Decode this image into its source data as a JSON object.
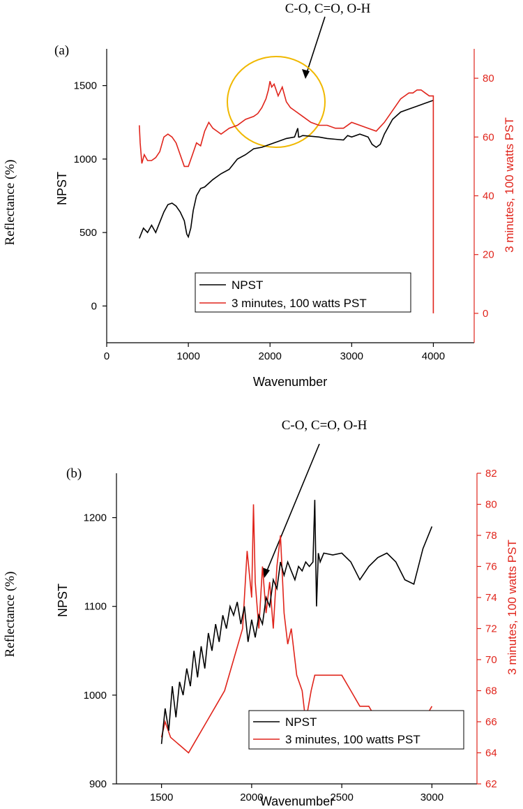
{
  "colors": {
    "npst": "#000000",
    "pst": "#e0241b",
    "circle": "#f0b800"
  },
  "side_label": "Reflectance (%)",
  "chart_data": [
    {
      "panel_label": "(a)",
      "type": "line",
      "annotation": "C-O, C=O, O-H",
      "xlabel": "Wavenumber",
      "ylabel": "NPST",
      "y2label": "3 minutes, 100 watts PST",
      "xlim": [
        0,
        4500
      ],
      "ylim": [
        -250,
        1750
      ],
      "y2lim": [
        -10,
        90
      ],
      "xticks": [
        0,
        1000,
        2000,
        3000,
        4000
      ],
      "xtick_labels": [
        "0",
        "1000",
        "2000",
        "3000",
        "4000"
      ],
      "yticks": [
        0,
        500,
        1000,
        1500
      ],
      "ytick_labels": [
        "0",
        "500",
        "1000",
        "1500"
      ],
      "y2ticks": [
        0,
        20,
        40,
        60,
        80
      ],
      "y2tick_labels": [
        "0",
        "20",
        "40",
        "60",
        "80"
      ],
      "legend": [
        "NPST",
        "3 minutes, 100 watts PST"
      ],
      "series": [
        {
          "name": "NPST",
          "axis": "left",
          "x": [
            400,
            450,
            500,
            550,
            600,
            650,
            700,
            750,
            800,
            850,
            900,
            950,
            980,
            1000,
            1030,
            1060,
            1100,
            1150,
            1200,
            1300,
            1400,
            1500,
            1600,
            1700,
            1800,
            1900,
            2000,
            2100,
            2200,
            2300,
            2340,
            2350,
            2360,
            2400,
            2500,
            2600,
            2700,
            2800,
            2900,
            2950,
            3000,
            3100,
            3200,
            3250,
            3300,
            3350,
            3400,
            3500,
            3600,
            3700,
            3800,
            3900,
            4000
          ],
          "y": [
            460,
            530,
            500,
            550,
            500,
            570,
            640,
            690,
            700,
            680,
            640,
            580,
            490,
            470,
            530,
            650,
            750,
            800,
            810,
            860,
            900,
            930,
            1000,
            1030,
            1070,
            1080,
            1100,
            1120,
            1140,
            1150,
            1210,
            1150,
            1150,
            1160,
            1155,
            1150,
            1140,
            1135,
            1130,
            1160,
            1150,
            1170,
            1150,
            1100,
            1080,
            1100,
            1170,
            1270,
            1320,
            1340,
            1360,
            1380,
            1400
          ]
        },
        {
          "name": "3 minutes, 100 watts PST",
          "axis": "right",
          "x": [
            400,
            410,
            430,
            460,
            500,
            550,
            600,
            650,
            700,
            750,
            800,
            850,
            900,
            950,
            980,
            1000,
            1050,
            1100,
            1150,
            1200,
            1250,
            1300,
            1350,
            1400,
            1500,
            1600,
            1700,
            1800,
            1850,
            1900,
            1950,
            1980,
            2000,
            2020,
            2050,
            2100,
            2150,
            2200,
            2250,
            2300,
            2400,
            2500,
            2600,
            2700,
            2800,
            2900,
            3000,
            3100,
            3200,
            3300,
            3400,
            3500,
            3600,
            3650,
            3700,
            3750,
            3800,
            3850,
            3900,
            3950,
            4000,
            4000
          ],
          "y": [
            64,
            58,
            51,
            54,
            52,
            52,
            53,
            55,
            60,
            61,
            60,
            58,
            54,
            50,
            50,
            50,
            54,
            58,
            57,
            62,
            65,
            63,
            62,
            61,
            63,
            64,
            66,
            67,
            68,
            70,
            73,
            76,
            79,
            77,
            78,
            74,
            77,
            72,
            70,
            69,
            67,
            65,
            64,
            64,
            63,
            63,
            65,
            64,
            63,
            62,
            65,
            69,
            73,
            74,
            75,
            75,
            76,
            76,
            75,
            74,
            74,
            0
          ]
        }
      ]
    },
    {
      "panel_label": "(b)",
      "type": "line",
      "annotation": "C-O, C=O, O-H",
      "xlabel": "Wavenumber",
      "ylabel": "NPST",
      "y2label": "3 minutes, 100 watts PST",
      "xlim": [
        1250,
        3250
      ],
      "ylim": [
        900,
        1250
      ],
      "y2lim": [
        62,
        82
      ],
      "xticks": [
        1500,
        2000,
        2500,
        3000
      ],
      "xtick_labels": [
        "1500",
        "2000",
        "2500",
        "3000"
      ],
      "yticks": [
        900,
        1000,
        1100,
        1200
      ],
      "ytick_labels": [
        "900",
        "1000",
        "1100",
        "1200"
      ],
      "y2ticks": [
        62,
        64,
        66,
        68,
        70,
        72,
        74,
        76,
        78,
        80,
        82
      ],
      "y2tick_labels": [
        "62",
        "64",
        "66",
        "68",
        "70",
        "72",
        "74",
        "76",
        "78",
        "80",
        "82"
      ],
      "legend": [
        "NPST",
        "3 minutes, 100 watts PST"
      ],
      "series": [
        {
          "name": "NPST",
          "axis": "left",
          "x": [
            1500,
            1520,
            1540,
            1560,
            1580,
            1600,
            1620,
            1640,
            1660,
            1680,
            1700,
            1720,
            1740,
            1760,
            1780,
            1800,
            1820,
            1840,
            1860,
            1880,
            1900,
            1920,
            1940,
            1960,
            1980,
            2000,
            2020,
            2040,
            2060,
            2080,
            2100,
            2120,
            2140,
            2160,
            2180,
            2200,
            2220,
            2240,
            2260,
            2280,
            2300,
            2320,
            2340,
            2350,
            2360,
            2370,
            2380,
            2400,
            2450,
            2500,
            2550,
            2600,
            2650,
            2700,
            2750,
            2800,
            2850,
            2900,
            2950,
            3000
          ],
          "y": [
            945,
            985,
            960,
            1010,
            975,
            1015,
            1000,
            1030,
            1010,
            1050,
            1020,
            1055,
            1030,
            1070,
            1050,
            1080,
            1060,
            1090,
            1075,
            1100,
            1090,
            1105,
            1080,
            1100,
            1060,
            1085,
            1065,
            1090,
            1080,
            1110,
            1100,
            1130,
            1120,
            1150,
            1135,
            1150,
            1140,
            1130,
            1145,
            1140,
            1150,
            1145,
            1150,
            1220,
            1100,
            1160,
            1150,
            1160,
            1158,
            1160,
            1150,
            1130,
            1145,
            1155,
            1160,
            1150,
            1130,
            1125,
            1165,
            1190
          ]
        },
        {
          "name": "3 minutes, 100 watts PST",
          "axis": "right",
          "x": [
            1500,
            1520,
            1550,
            1600,
            1650,
            1700,
            1750,
            1800,
            1850,
            1900,
            1950,
            1975,
            2000,
            2010,
            2020,
            2040,
            2060,
            2080,
            2100,
            2120,
            2140,
            2160,
            2180,
            2200,
            2220,
            2250,
            2280,
            2300,
            2330,
            2350,
            2400,
            2450,
            2500,
            2550,
            2600,
            2650,
            2700,
            2750,
            2800,
            2850,
            2900,
            2950,
            3000
          ],
          "y": [
            65,
            66,
            65,
            64.5,
            64,
            65,
            66,
            67,
            68,
            70,
            72,
            77,
            74,
            80,
            75,
            72,
            76,
            73,
            75,
            72,
            76,
            78,
            73,
            71,
            72,
            69,
            68,
            66,
            68,
            69,
            69,
            69,
            69,
            68,
            67,
            67,
            66,
            66,
            65,
            65,
            65,
            66,
            67
          ]
        }
      ]
    }
  ]
}
